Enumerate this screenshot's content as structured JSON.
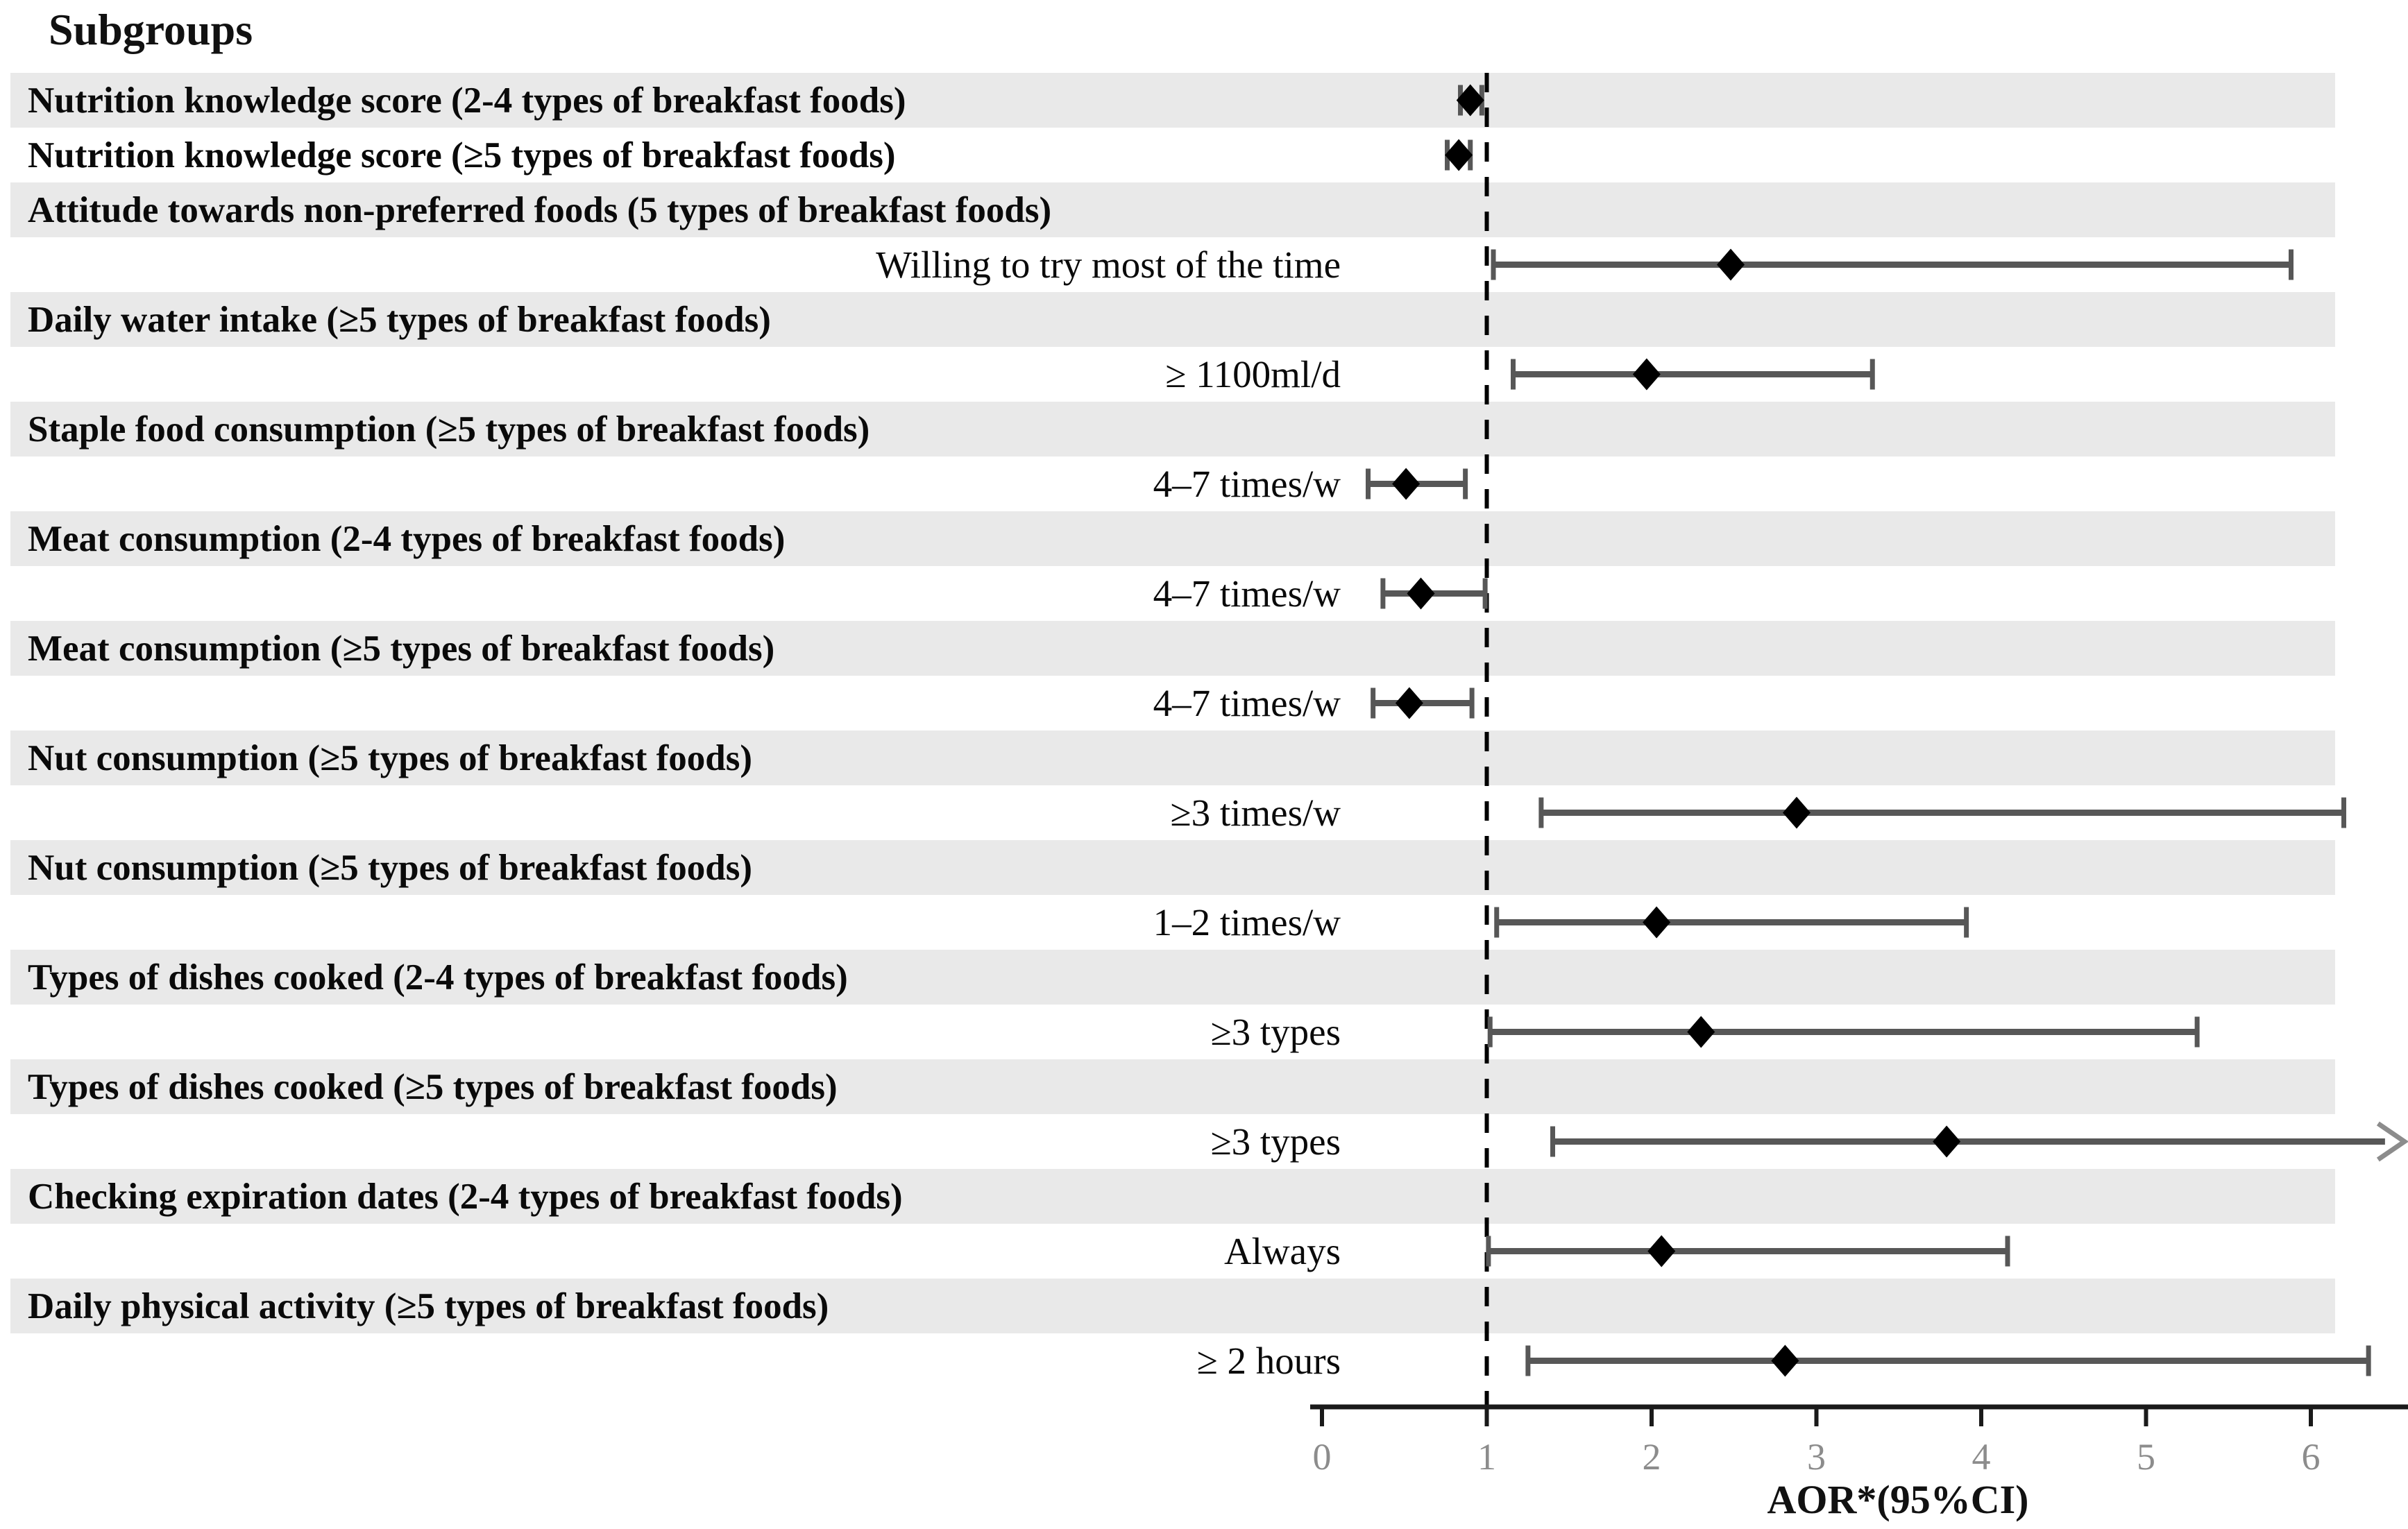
{
  "title": "Subgroups",
  "axis": {
    "label": "AOR*(95%CI)",
    "ticks": [
      "0",
      "1",
      "2",
      "3",
      "4",
      "5",
      "6"
    ],
    "tick_values": [
      0,
      1,
      2,
      3,
      4,
      5,
      6
    ],
    "min": 0,
    "max": 6.6,
    "reference_line": 1
  },
  "colors": {
    "band_gray": "#e9e9e9",
    "band_white": "#ffffff",
    "ci_bar": "#575757",
    "diamond": "#000000",
    "reference_line": "#000000",
    "axis_line": "#1a1a1a",
    "tick_label": "#8c8c8c",
    "arrow": "#8c8c8c"
  },
  "chart_data": {
    "type": "forest",
    "title": "Subgroups",
    "xlabel": "AOR*(95%CI)",
    "xlim": [
      0,
      6.6
    ],
    "reference_line": 1,
    "rows": [
      {
        "kind": "group",
        "label": "Nutrition knowledge score (2-4 types of breakfast foods)",
        "est": 0.9,
        "lo": 0.84,
        "hi": 0.97,
        "arrow": false
      },
      {
        "kind": "group",
        "label": "Nutrition knowledge score (≥5 types of breakfast foods)",
        "est": 0.83,
        "lo": 0.76,
        "hi": 0.9,
        "arrow": false
      },
      {
        "kind": "group",
        "label": "Attitude towards non-preferred foods (5 types of breakfast foods)"
      },
      {
        "kind": "category",
        "label": "Willing to try most of the time",
        "est": 2.48,
        "lo": 1.04,
        "hi": 5.88,
        "arrow": false
      },
      {
        "kind": "group",
        "label": "Daily water intake (≥5 types of breakfast foods)"
      },
      {
        "kind": "category",
        "label": "≥ 1100ml/d",
        "est": 1.97,
        "lo": 1.16,
        "hi": 3.34,
        "arrow": false
      },
      {
        "kind": "group",
        "label": "Staple food consumption (≥5 types of breakfast foods)"
      },
      {
        "kind": "category",
        "label": "4–7 times/w",
        "est": 0.51,
        "lo": 0.28,
        "hi": 0.87,
        "arrow": false
      },
      {
        "kind": "group",
        "label": "Meat consumption (2-4 types of breakfast foods)"
      },
      {
        "kind": "category",
        "label": "4–7 times/w",
        "est": 0.6,
        "lo": 0.37,
        "hi": 0.99,
        "arrow": false
      },
      {
        "kind": "group",
        "label": "Meat consumption (≥5 types of breakfast foods)"
      },
      {
        "kind": "category",
        "label": "4–7 times/w",
        "est": 0.53,
        "lo": 0.31,
        "hi": 0.91,
        "arrow": false
      },
      {
        "kind": "group",
        "label": "Nut consumption (≥5 types of breakfast foods)"
      },
      {
        "kind": "category",
        "label": "≥3 times/w",
        "est": 2.88,
        "lo": 1.33,
        "hi": 6.2,
        "arrow": false
      },
      {
        "kind": "group",
        "label": "Nut consumption (≥5 types of breakfast foods)"
      },
      {
        "kind": "category",
        "label": "1–2 times/w",
        "est": 2.03,
        "lo": 1.06,
        "hi": 3.91,
        "arrow": false
      },
      {
        "kind": "group",
        "label": "Types of dishes cooked (2-4 types of breakfast foods)"
      },
      {
        "kind": "category",
        "label": "≥3 types",
        "est": 2.3,
        "lo": 1.02,
        "hi": 5.31,
        "arrow": false
      },
      {
        "kind": "group",
        "label": "Types of dishes cooked (≥5 types of breakfast foods)"
      },
      {
        "kind": "category",
        "label": "≥3 types",
        "est": 3.79,
        "lo": 1.4,
        "hi": 6.45,
        "arrow": true
      },
      {
        "kind": "group",
        "label": "Checking expiration dates (2-4 types of breakfast foods)"
      },
      {
        "kind": "category",
        "label": "Always",
        "est": 2.06,
        "lo": 1.01,
        "hi": 4.16,
        "arrow": false
      },
      {
        "kind": "group",
        "label": "Daily physical activity (≥5 types of breakfast foods)"
      },
      {
        "kind": "category",
        "label": "≥ 2 hours",
        "est": 2.81,
        "lo": 1.25,
        "hi": 6.35,
        "arrow": false
      }
    ]
  }
}
